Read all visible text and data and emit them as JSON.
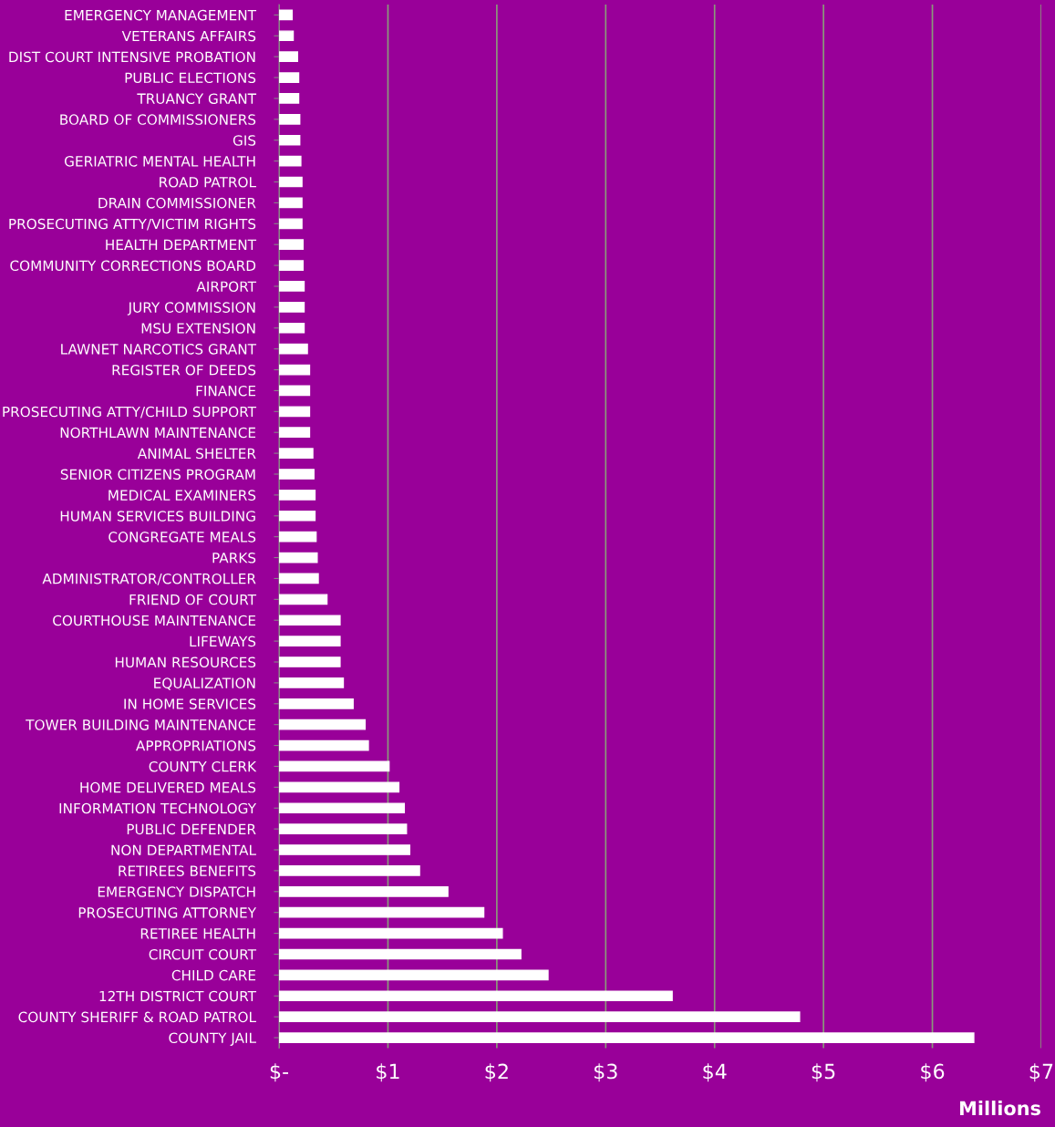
{
  "chart_data": {
    "type": "bar",
    "orientation": "horizontal",
    "xlabel": "Millions",
    "categories": [
      "EMERGENCY MANAGEMENT",
      "VETERANS AFFAIRS",
      "DIST COURT INTENSIVE PROBATION",
      "PUBLIC ELECTIONS",
      "TRUANCY GRANT",
      "BOARD OF COMMISSIONERS",
      "GIS",
      "GERIATRIC MENTAL HEALTH",
      "ROAD PATROL",
      "DRAIN COMMISSIONER",
      "PROSECUTING ATTY/VICTIM RIGHTS",
      "HEALTH DEPARTMENT",
      "COMMUNITY CORRECTIONS BOARD",
      "AIRPORT",
      "JURY COMMISSION",
      "MSU EXTENSION",
      "LAWNET NARCOTICS GRANT",
      "REGISTER OF DEEDS",
      "FINANCE",
      "PROSECUTING ATTY/CHILD SUPPORT",
      "NORTHLAWN MAINTENANCE",
      "ANIMAL SHELTER",
      "SENIOR CITIZENS PROGRAM",
      "MEDICAL EXAMINERS",
      "HUMAN SERVICES BUILDING",
      "CONGREGATE MEALS",
      "PARKS",
      "ADMINISTRATOR/CONTROLLER",
      "FRIEND OF COURT",
      "COURTHOUSE MAINTENANCE",
      "LIFEWAYS",
      "HUMAN RESOURCES",
      "EQUALIZATION",
      "IN HOME SERVICES",
      "TOWER BUILDING MAINTENANCE",
      "APPROPRIATIONS",
      "COUNTY CLERK",
      "HOME DELIVERED MEALS",
      "INFORMATION TECHNOLOGY",
      "PUBLIC DEFENDER",
      "NON DEPARTMENTAL",
      "RETIREES BENEFITS",
      "EMERGENCY DISPATCH",
      "PROSECUTING ATTORNEY",
      "RETIREE HEALTH",
      "CIRCUIT COURT",
      "CHILD CARE",
      "12TH DISTRICT COURT",
      "COUNTY SHERIFF & ROAD PATROL",
      "COUNTY JAIL"
    ],
    "values": [
      0.12,
      0.13,
      0.17,
      0.18,
      0.18,
      0.19,
      0.19,
      0.2,
      0.21,
      0.21,
      0.21,
      0.22,
      0.22,
      0.23,
      0.23,
      0.23,
      0.26,
      0.28,
      0.28,
      0.28,
      0.28,
      0.31,
      0.32,
      0.33,
      0.33,
      0.34,
      0.35,
      0.36,
      0.44,
      0.56,
      0.56,
      0.56,
      0.59,
      0.68,
      0.79,
      0.82,
      1.01,
      1.1,
      1.15,
      1.17,
      1.2,
      1.29,
      1.55,
      1.88,
      2.05,
      2.22,
      2.47,
      3.61,
      4.78,
      6.38
    ],
    "color": "#ffffff",
    "xlim": [
      0,
      7
    ],
    "xticks": [
      {
        "value": 0,
        "label": "$-"
      },
      {
        "value": 1,
        "label": "$1"
      },
      {
        "value": 2,
        "label": "$2"
      },
      {
        "value": 3,
        "label": "$3"
      },
      {
        "value": 4,
        "label": "$4"
      },
      {
        "value": 5,
        "label": "$5"
      },
      {
        "value": 6,
        "label": "$6"
      },
      {
        "value": 7,
        "label": "$7"
      }
    ],
    "grid": "x",
    "legend": false
  }
}
